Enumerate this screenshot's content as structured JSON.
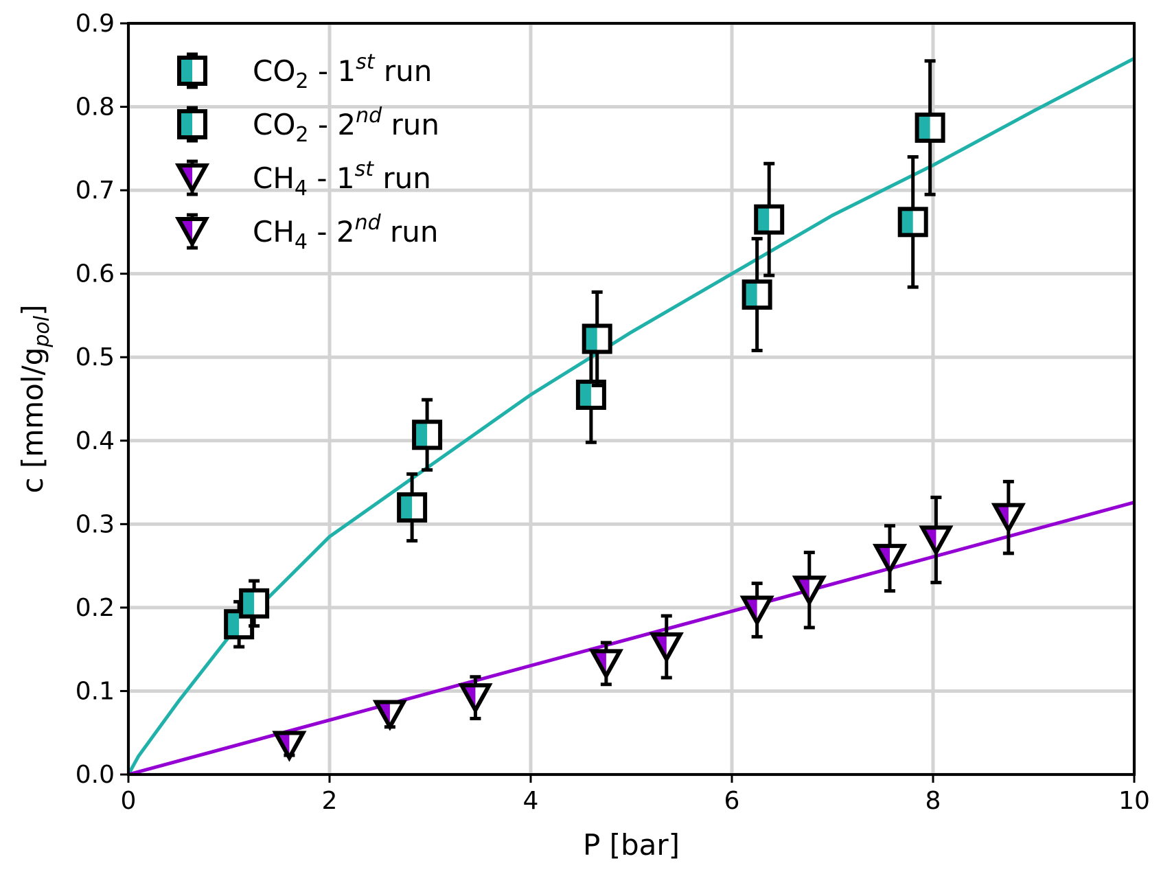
{
  "chart_data": {
    "type": "scatter",
    "xlabel": "P [bar]",
    "ylabel": {
      "main": "c [mmol/g",
      "sub": "pol",
      "close": "]"
    },
    "xlim": [
      0,
      10
    ],
    "ylim": [
      0,
      0.9
    ],
    "xticks": [
      "0",
      "2",
      "4",
      "6",
      "8",
      "10"
    ],
    "yticks": [
      "0.0",
      "0.1",
      "0.2",
      "0.3",
      "0.4",
      "0.5",
      "0.6",
      "0.7",
      "0.8",
      "0.9"
    ],
    "grid": true,
    "legend_position": "top-left",
    "colors": {
      "co2": "#20b2aa",
      "ch4": "#9400d3",
      "grid": "#d3d3d3",
      "marker_edge": "#000000"
    },
    "series": [
      {
        "legend": {
          "gas": "CO",
          "sub": "2",
          "dash": " - ",
          "num": "1",
          "sup": "st",
          "suffix": " run"
        },
        "marker": "square",
        "color": "#20b2aa",
        "x": [
          1.1,
          2.82,
          4.6,
          6.25,
          7.8
        ],
        "y": [
          0.18,
          0.32,
          0.455,
          0.575,
          0.662
        ],
        "err": [
          0.027,
          0.04,
          0.057,
          0.067,
          0.078
        ]
      },
      {
        "legend": {
          "gas": "CO",
          "sub": "2",
          "dash": " - ",
          "num": "2",
          "sup": "nd",
          "suffix": " run"
        },
        "marker": "square",
        "color": "#20b2aa",
        "x": [
          1.25,
          2.97,
          4.66,
          6.37,
          7.97
        ],
        "y": [
          0.205,
          0.407,
          0.522,
          0.665,
          0.775
        ],
        "err": [
          0.027,
          0.042,
          0.056,
          0.067,
          0.08
        ]
      },
      {
        "legend": {
          "gas": "CH",
          "sub": "4",
          "dash": " - ",
          "num": "1",
          "sup": "st",
          "suffix": " run"
        },
        "marker": "triangle-down",
        "color": "#9400d3",
        "x": [
          1.6,
          2.6,
          3.45,
          4.75,
          5.35,
          6.25,
          6.77,
          7.57,
          8.03,
          8.75
        ],
        "y": [
          0.035,
          0.072,
          0.092,
          0.133,
          0.153,
          0.197,
          0.221,
          0.259,
          0.281,
          0.308
        ],
        "err": [
          0.012,
          0.015,
          0.025,
          0.025,
          0.037,
          0.032,
          0.045,
          0.039,
          0.051,
          0.043
        ]
      },
      {
        "legend": {
          "gas": "CH",
          "sub": "4",
          "dash": " - ",
          "num": "2",
          "sup": "nd",
          "suffix": " run"
        },
        "marker": "triangle-down",
        "color": "#9400d3",
        "x": [],
        "y": [],
        "err": []
      }
    ],
    "fit_lines": [
      {
        "gas": "CO2",
        "color": "#20b2aa",
        "x": [
          0,
          0.1,
          0.5,
          1.0,
          1.5,
          2.0,
          3.0,
          4.0,
          5.0,
          6.0,
          7.0,
          8.0,
          9.0,
          10.0
        ],
        "y": [
          0,
          0.022,
          0.088,
          0.165,
          0.225,
          0.285,
          0.37,
          0.455,
          0.53,
          0.6,
          0.67,
          0.73,
          0.795,
          0.858
        ]
      },
      {
        "gas": "CH4",
        "color": "#9400d3",
        "x": [
          0,
          10
        ],
        "y": [
          0,
          0.326
        ]
      }
    ]
  }
}
